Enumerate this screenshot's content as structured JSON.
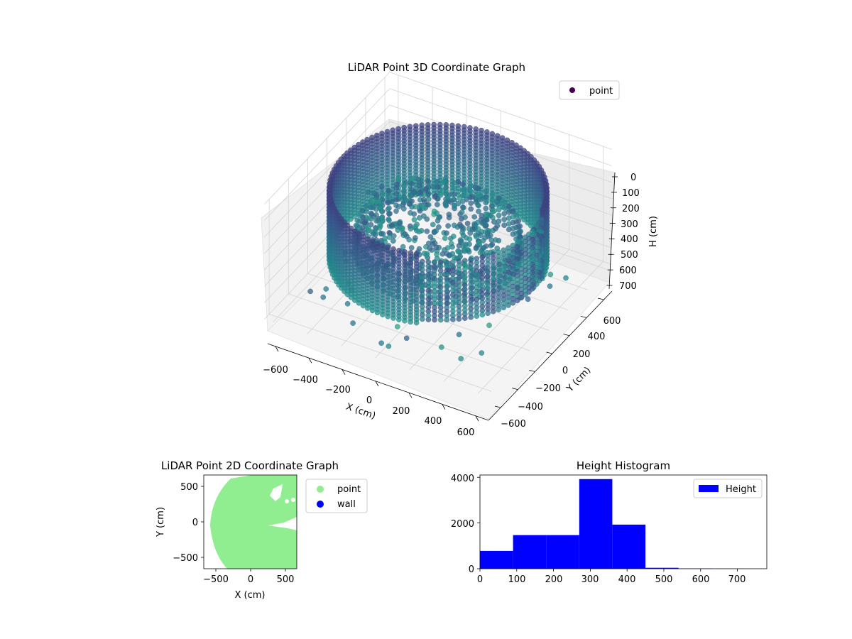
{
  "chart_data": [
    {
      "type": "scatter",
      "projection": "3d",
      "title": "LiDAR Point 3D Coordinate Graph",
      "xlabel": "X (cm)",
      "ylabel": "Y (cm)",
      "zlabel": "H (cm)",
      "xticks": [
        "−600",
        "−400",
        "−200",
        "0",
        "200",
        "400",
        "600"
      ],
      "yticks": [
        "−600",
        "−400",
        "−200",
        "0",
        "200",
        "400",
        "600"
      ],
      "zticks": [
        "0",
        "100",
        "200",
        "300",
        "400",
        "500",
        "600",
        "700"
      ],
      "xlim": [
        -650,
        650
      ],
      "ylim": [
        -650,
        650
      ],
      "zlim": [
        0,
        700
      ],
      "zaxis_inverted": true,
      "colormap": "viridis",
      "legend": {
        "location": "top-right",
        "entries": [
          {
            "label": "point",
            "color": "#440154"
          }
        ]
      },
      "grid": true,
      "description": "Dense ring of points near radius 550 cm at heights roughly 80-500 cm, with a sparse ring near radius 420 cm and an inner cluster of points."
    },
    {
      "type": "scatter",
      "title": "LiDAR Point 2D Coordinate Graph",
      "xlabel": "X (cm)",
      "ylabel": "Y (cm)",
      "xticks": [
        "−500",
        "0",
        "500"
      ],
      "yticks": [
        "−500",
        "0",
        "500"
      ],
      "xlim": [
        -680,
        670
      ],
      "ylim": [
        -680,
        680
      ],
      "series": [
        {
          "name": "point",
          "color": "#90ee90"
        },
        {
          "name": "wall",
          "color": "#0000ff"
        }
      ],
      "legend": {
        "location": "outside-right"
      },
      "grid": false
    },
    {
      "type": "bar",
      "subtype": "histogram",
      "title": "Height Histogram",
      "xticks": [
        "0",
        "100",
        "200",
        "300",
        "400",
        "500",
        "600",
        "700"
      ],
      "yticks": [
        "0",
        "2000",
        "4000"
      ],
      "xlim": [
        0,
        780
      ],
      "ylim": [
        0,
        4100
      ],
      "bin_edges": [
        0,
        90,
        180,
        270,
        360,
        450,
        540,
        630,
        720
      ],
      "values": [
        780,
        1470,
        1470,
        3920,
        1930,
        40,
        8,
        3
      ],
      "color": "#0000ff",
      "legend": {
        "location": "top-right",
        "entries": [
          {
            "label": "Height",
            "color": "#0000ff"
          }
        ]
      },
      "grid": false
    }
  ]
}
